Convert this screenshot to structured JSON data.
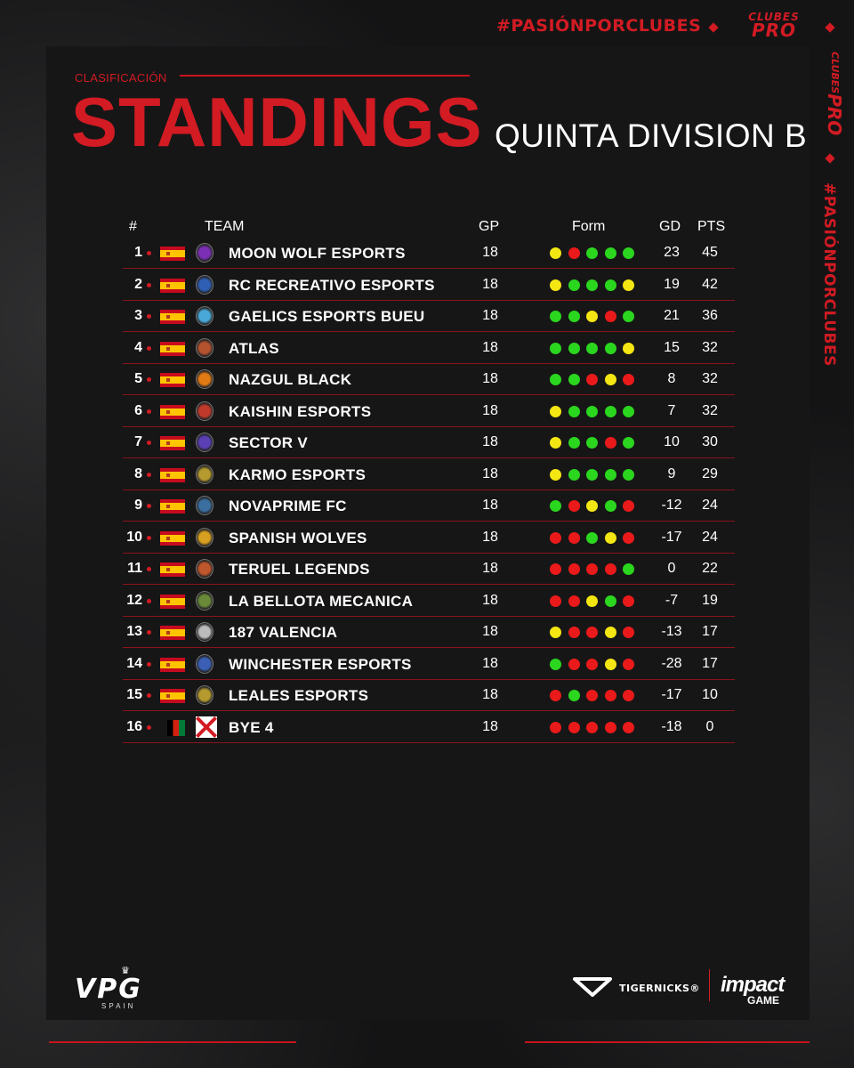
{
  "header": {
    "hashtag": "#PASIÓNPORCLUBES",
    "side_hashtag": "#PASIÓNPORCLUBES",
    "clubes_logo": {
      "top": "CLUBES",
      "bottom": "PRO"
    },
    "subtitle": "CLASIFICACIÓN",
    "title": "STANDINGS",
    "division": "QUINTA DIVISION B"
  },
  "table": {
    "columns": {
      "pos": "#",
      "team": "TEAM",
      "gp": "GP",
      "form": "Form",
      "gd": "GD",
      "pts": "PTS"
    },
    "form_colors": {
      "W": "#2bd61e",
      "D": "#f4e612",
      "L": "#ea1a1a"
    },
    "rows": [
      {
        "pos": "1",
        "flag": "spain-flag",
        "team": "MOON WOLF ESPORTS",
        "gp": "18",
        "form": [
          "D",
          "L",
          "W",
          "W",
          "W"
        ],
        "gd": "23",
        "pts": "45",
        "crest_color": "#7b2fb5"
      },
      {
        "pos": "2",
        "flag": "spain-flag",
        "team": "RC RECREATIVO ESPORTS",
        "gp": "18",
        "form": [
          "D",
          "W",
          "W",
          "W",
          "D"
        ],
        "gd": "19",
        "pts": "42",
        "crest_color": "#2f5fb5"
      },
      {
        "pos": "3",
        "flag": "spain-flag",
        "team": "GAELICS ESPORTS BUEU",
        "gp": "18",
        "form": [
          "W",
          "W",
          "D",
          "L",
          "W"
        ],
        "gd": "21",
        "pts": "36",
        "crest_color": "#4aa8d8"
      },
      {
        "pos": "4",
        "flag": "spain-flag",
        "team": "ATLAS",
        "gp": "18",
        "form": [
          "W",
          "W",
          "W",
          "W",
          "D"
        ],
        "gd": "15",
        "pts": "32",
        "crest_color": "#b5532f"
      },
      {
        "pos": "5",
        "flag": "spain-flag",
        "team": "NAZGUL BLACK",
        "gp": "18",
        "form": [
          "W",
          "W",
          "L",
          "D",
          "L"
        ],
        "gd": "8",
        "pts": "32",
        "crest_color": "#e27a14"
      },
      {
        "pos": "6",
        "flag": "spain-flag",
        "team": "KAISHIN ESPORTS",
        "gp": "18",
        "form": [
          "D",
          "W",
          "W",
          "W",
          "W"
        ],
        "gd": "7",
        "pts": "32",
        "crest_color": "#c0392b"
      },
      {
        "pos": "7",
        "flag": "spain-flag",
        "team": "SECTOR V",
        "gp": "18",
        "form": [
          "D",
          "W",
          "W",
          "L",
          "W"
        ],
        "gd": "10",
        "pts": "30",
        "crest_color": "#5a3fb5"
      },
      {
        "pos": "8",
        "flag": "spain-flag",
        "team": "KARMO ESPORTS",
        "gp": "18",
        "form": [
          "D",
          "W",
          "W",
          "W",
          "W"
        ],
        "gd": "9",
        "pts": "29",
        "crest_color": "#b59a2f"
      },
      {
        "pos": "9",
        "flag": "spain-flag",
        "team": "NOVAPRIME FC",
        "gp": "18",
        "form": [
          "W",
          "L",
          "D",
          "W",
          "L"
        ],
        "gd": "-12",
        "pts": "24",
        "crest_color": "#3a6fa0"
      },
      {
        "pos": "10",
        "flag": "spain-flag",
        "team": "SPANISH WOLVES",
        "gp": "18",
        "form": [
          "L",
          "L",
          "W",
          "D",
          "L"
        ],
        "gd": "-17",
        "pts": "24",
        "crest_color": "#d8a020"
      },
      {
        "pos": "11",
        "flag": "spain-flag",
        "team": "TERUEL LEGENDS",
        "gp": "18",
        "form": [
          "L",
          "L",
          "L",
          "L",
          "W"
        ],
        "gd": "0",
        "pts": "22",
        "crest_color": "#c0562b"
      },
      {
        "pos": "12",
        "flag": "spain-flag",
        "team": "LA BELLOTA MECANICA",
        "gp": "18",
        "form": [
          "L",
          "L",
          "D",
          "W",
          "L"
        ],
        "gd": "-7",
        "pts": "19",
        "crest_color": "#6a8a3a"
      },
      {
        "pos": "13",
        "flag": "spain-flag",
        "team": "187 VALENCIA",
        "gp": "18",
        "form": [
          "D",
          "L",
          "L",
          "D",
          "L"
        ],
        "gd": "-13",
        "pts": "17",
        "crest_color": "#bbbbbb"
      },
      {
        "pos": "14",
        "flag": "spain-flag",
        "team": "WINCHESTER ESPORTS",
        "gp": "18",
        "form": [
          "W",
          "L",
          "L",
          "D",
          "L"
        ],
        "gd": "-28",
        "pts": "17",
        "crest_color": "#3a5fb5"
      },
      {
        "pos": "15",
        "flag": "spain-flag",
        "team": "LEALES ESPORTS",
        "gp": "18",
        "form": [
          "L",
          "W",
          "L",
          "L",
          "L"
        ],
        "gd": "-17",
        "pts": "10",
        "crest_color": "#b59a2f"
      },
      {
        "pos": "16",
        "flag": "afghanistan-flag",
        "team": "BYE 4",
        "gp": "18",
        "form": [
          "L",
          "L",
          "L",
          "L",
          "L"
        ],
        "gd": "-18",
        "pts": "0",
        "crest_color": "#d21b23"
      }
    ]
  },
  "footer": {
    "vpg": {
      "main": "VPG",
      "sub": "SPAIN"
    },
    "sponsor1": "TIGERNICKS®",
    "sponsor2": {
      "main": "impact",
      "sub": "GAME"
    }
  }
}
